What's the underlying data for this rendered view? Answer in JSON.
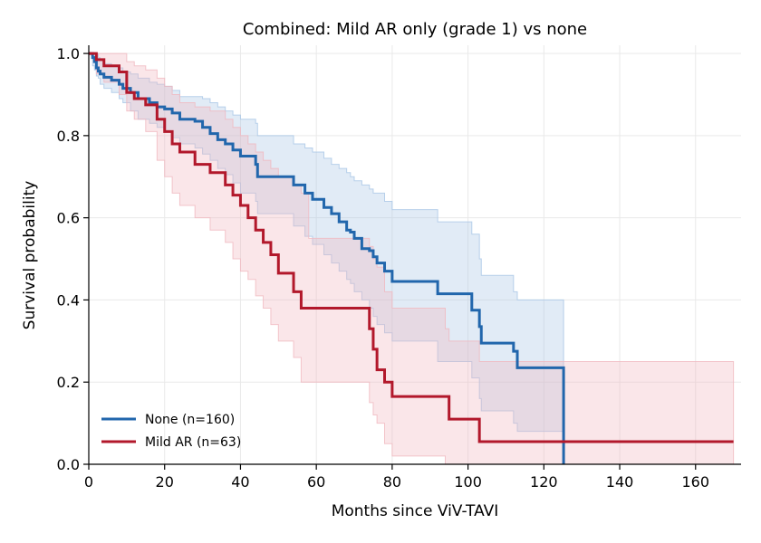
{
  "chart_data": {
    "type": "line",
    "title": "Combined: Mild AR only (grade 1) vs none",
    "xlabel": "Months since ViV-TAVI",
    "ylabel": "Survival probability",
    "xlim": [
      0,
      172
    ],
    "ylim": [
      0,
      1.02
    ],
    "x_ticks": [
      "0",
      "20",
      "40",
      "60",
      "80",
      "100",
      "120",
      "140",
      "160"
    ],
    "y_ticks": [
      "0.0",
      "0.2",
      "0.4",
      "0.6",
      "0.8",
      "1.0"
    ],
    "grid": true,
    "legend_position": "lower-left",
    "series": [
      {
        "name": "None (n=160)",
        "color": "#2166ac",
        "band_color": "#a8c6e6",
        "x": [
          0,
          1,
          1.5,
          2,
          2.5,
          3,
          4,
          6,
          8,
          9,
          11,
          13,
          16,
          18,
          20,
          22,
          24,
          28,
          30,
          32,
          34,
          36,
          38,
          40,
          44,
          44.5,
          48,
          54,
          57,
          59,
          62,
          64,
          66,
          67,
          68,
          69,
          70,
          72,
          74,
          75,
          76,
          78,
          80,
          82,
          92,
          95,
          101,
          103,
          103.5,
          104,
          112,
          113,
          124,
          125,
          125.2
        ],
        "y": [
          1.0,
          0.99,
          0.98,
          0.965,
          0.957,
          0.95,
          0.942,
          0.935,
          0.925,
          0.915,
          0.905,
          0.89,
          0.88,
          0.87,
          0.865,
          0.855,
          0.84,
          0.835,
          0.82,
          0.805,
          0.79,
          0.78,
          0.765,
          0.75,
          0.73,
          0.7,
          0.7,
          0.68,
          0.66,
          0.645,
          0.625,
          0.61,
          0.59,
          0.59,
          0.57,
          0.565,
          0.55,
          0.525,
          0.52,
          0.505,
          0.49,
          0.47,
          0.445,
          0.445,
          0.415,
          0.415,
          0.375,
          0.335,
          0.295,
          0.295,
          0.275,
          0.235,
          0.235,
          0.235,
          0.0
        ],
        "ci_upper": [
          1.0,
          1.0,
          1.0,
          1.0,
          0.99,
          0.985,
          0.975,
          0.97,
          0.965,
          0.955,
          0.95,
          0.94,
          0.93,
          0.925,
          0.92,
          0.91,
          0.895,
          0.895,
          0.89,
          0.88,
          0.87,
          0.86,
          0.85,
          0.84,
          0.83,
          0.8,
          0.8,
          0.78,
          0.77,
          0.76,
          0.745,
          0.73,
          0.72,
          0.72,
          0.71,
          0.7,
          0.69,
          0.68,
          0.67,
          0.66,
          0.66,
          0.64,
          0.62,
          0.62,
          0.59,
          0.59,
          0.56,
          0.5,
          0.46,
          0.46,
          0.42,
          0.4,
          0.4,
          0.4,
          0.4
        ],
        "ci_lower": [
          1.0,
          0.97,
          0.96,
          0.945,
          0.94,
          0.925,
          0.915,
          0.905,
          0.89,
          0.88,
          0.86,
          0.84,
          0.83,
          0.82,
          0.81,
          0.795,
          0.78,
          0.77,
          0.755,
          0.74,
          0.72,
          0.705,
          0.685,
          0.66,
          0.64,
          0.61,
          0.61,
          0.58,
          0.555,
          0.535,
          0.51,
          0.49,
          0.47,
          0.47,
          0.45,
          0.44,
          0.42,
          0.4,
          0.38,
          0.36,
          0.34,
          0.32,
          0.3,
          0.3,
          0.25,
          0.25,
          0.21,
          0.16,
          0.13,
          0.13,
          0.1,
          0.08,
          0.08,
          0.08,
          0.0
        ]
      },
      {
        "name": "Mild AR (n=63)",
        "color": "#b2182b",
        "band_color": "#f0b8bf",
        "x": [
          0,
          2,
          4,
          8,
          10,
          12,
          15,
          18,
          20,
          22,
          24,
          28,
          32,
          36,
          38,
          40,
          42,
          44,
          46,
          48,
          50,
          54,
          56,
          58,
          74,
          75,
          76,
          78,
          80,
          94,
          95,
          103,
          170
        ],
        "y": [
          1.0,
          0.985,
          0.97,
          0.955,
          0.905,
          0.89,
          0.875,
          0.84,
          0.81,
          0.78,
          0.76,
          0.73,
          0.71,
          0.68,
          0.655,
          0.63,
          0.6,
          0.57,
          0.54,
          0.51,
          0.465,
          0.42,
          0.38,
          0.38,
          0.33,
          0.28,
          0.23,
          0.2,
          0.165,
          0.165,
          0.11,
          0.055,
          0.055
        ],
        "ci_upper": [
          1.0,
          1.0,
          1.0,
          1.0,
          0.98,
          0.97,
          0.96,
          0.94,
          0.92,
          0.9,
          0.88,
          0.87,
          0.86,
          0.84,
          0.82,
          0.8,
          0.78,
          0.76,
          0.74,
          0.72,
          0.7,
          0.68,
          0.66,
          0.55,
          0.53,
          0.5,
          0.48,
          0.42,
          0.38,
          0.33,
          0.3,
          0.25,
          0.16
        ],
        "ci_lower": [
          1.0,
          0.95,
          0.93,
          0.9,
          0.86,
          0.84,
          0.81,
          0.74,
          0.7,
          0.66,
          0.63,
          0.6,
          0.57,
          0.54,
          0.5,
          0.47,
          0.45,
          0.41,
          0.38,
          0.34,
          0.3,
          0.26,
          0.2,
          0.2,
          0.15,
          0.12,
          0.1,
          0.05,
          0.02,
          0.0,
          0.0,
          0.0,
          0.0
        ]
      }
    ]
  }
}
